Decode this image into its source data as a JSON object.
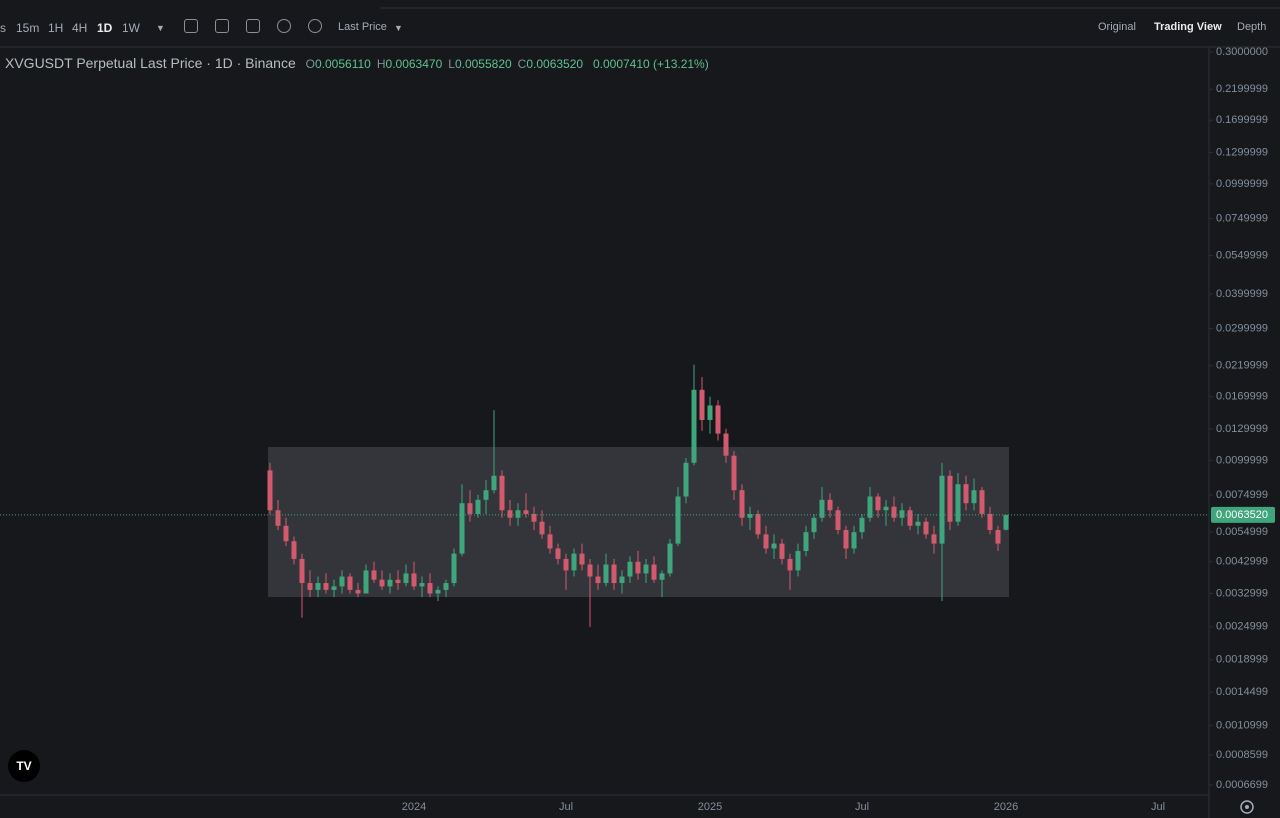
{
  "toolbar": {
    "intervals": [
      "s",
      "15m",
      "1H",
      "4H",
      "1D",
      "1W"
    ],
    "price_source": "Last Price",
    "views": [
      "Original",
      "Trading View",
      "Depth"
    ]
  },
  "header": {
    "title": "XVGUSDT Perpetual Last Price · 1D · Binance",
    "ohlc": [
      {
        "key": "O",
        "value": "0.0056110"
      },
      {
        "key": "H",
        "value": "0.0063470"
      },
      {
        "key": "L",
        "value": "0.0055820"
      },
      {
        "key": "C",
        "value": "0.0063520"
      }
    ],
    "change": "0.0007410 (+13.21%)"
  },
  "chart_data": {
    "type": "candlestick",
    "log_scale": true,
    "grid": false,
    "up_color": "#3fa57d",
    "down_color": "#d25a6e",
    "categories": [
      null,
      null,
      null,
      null,
      null,
      null,
      null,
      null,
      null,
      null,
      null,
      null,
      null,
      null,
      null,
      null,
      null,
      null,
      "2024",
      null,
      null,
      null,
      null,
      null,
      null,
      null,
      null,
      null,
      null,
      null,
      null,
      null,
      null,
      null,
      null,
      null,
      null,
      "Jul",
      null,
      null,
      null,
      null,
      null,
      null,
      null,
      null,
      null,
      null,
      null,
      null,
      null,
      null,
      null,
      null,
      null,
      "2025",
      null,
      null,
      null,
      null,
      null,
      null,
      null,
      null,
      null,
      null,
      null,
      null,
      null,
      null,
      null,
      null,
      null,
      null,
      "Jul",
      null,
      null,
      null,
      null,
      null,
      null,
      null,
      null,
      null,
      null,
      null,
      null,
      null,
      null,
      null,
      null,
      null,
      "2026",
      null,
      null,
      null,
      null,
      null,
      null,
      null,
      null,
      null,
      null,
      null,
      null,
      null,
      null,
      null,
      null,
      null,
      null,
      "Jul"
    ],
    "open": [
      0.0092,
      0.0066,
      0.0058,
      0.0051,
      0.0044,
      0.0036,
      0.0034,
      0.0036,
      0.0034,
      0.0035,
      0.0038,
      0.0034,
      0.0033,
      0.004,
      0.0037,
      0.0035,
      0.0037,
      0.0036,
      0.0039,
      0.0035,
      0.0036,
      0.0033,
      0.0034,
      0.0036,
      0.0046,
      0.007,
      0.0064,
      0.0072,
      0.0078,
      0.0088,
      0.0066,
      0.0062,
      0.0066,
      0.0064,
      0.006,
      0.0054,
      0.0048,
      0.0044,
      0.004,
      0.0046,
      0.0042,
      0.0038,
      0.0036,
      0.0042,
      0.0036,
      0.0038,
      0.0043,
      0.0039,
      0.0042,
      0.0037,
      0.0039,
      0.005,
      0.0074,
      0.0098,
      0.018,
      0.014,
      0.0158,
      0.0125,
      0.0104,
      0.0078,
      0.0062,
      0.0064,
      0.0054,
      0.0048,
      0.005,
      0.0044,
      0.004,
      0.0047,
      0.0055,
      0.0062,
      0.0072,
      0.0066,
      0.0056,
      0.0048,
      0.0055,
      0.0062,
      0.0074,
      0.0066,
      0.0068,
      0.0062,
      0.0066,
      0.0058,
      0.006,
      0.0054,
      0.005,
      0.0088,
      0.006,
      0.0082,
      0.007,
      0.0078,
      0.0064,
      0.0056,
      0.005611,
      null,
      null,
      null,
      null,
      null,
      null,
      null,
      null,
      null,
      null,
      null,
      null,
      null,
      null,
      null,
      null,
      null,
      null,
      null
    ],
    "high": [
      0.0098,
      0.0072,
      0.0062,
      0.0053,
      0.0046,
      0.004,
      0.0038,
      0.0039,
      0.0037,
      0.004,
      0.0039,
      0.0036,
      0.0042,
      0.0043,
      0.004,
      0.0039,
      0.004,
      0.0042,
      0.0043,
      0.0038,
      0.0039,
      0.0035,
      0.0037,
      0.0048,
      0.0082,
      0.0078,
      0.0075,
      0.0085,
      0.0152,
      0.0092,
      0.0072,
      0.007,
      0.0076,
      0.0068,
      0.0066,
      0.0058,
      0.005,
      0.0046,
      0.0048,
      0.005,
      0.0044,
      0.0042,
      0.0046,
      0.0044,
      0.004,
      0.0045,
      0.0047,
      0.0044,
      0.0045,
      0.004,
      0.0052,
      0.008,
      0.0102,
      0.0222,
      0.02,
      0.017,
      0.0165,
      0.013,
      0.0108,
      0.0082,
      0.0068,
      0.0066,
      0.0058,
      0.0054,
      0.0052,
      0.0046,
      0.005,
      0.0058,
      0.0064,
      0.008,
      0.0076,
      0.0068,
      0.0058,
      0.0058,
      0.0064,
      0.008,
      0.0076,
      0.0072,
      0.0074,
      0.007,
      0.0068,
      0.0064,
      0.0062,
      0.0058,
      0.0098,
      0.0092,
      0.009,
      0.0088,
      0.0086,
      0.008,
      0.0068,
      0.0058,
      0.006347,
      null,
      null,
      null,
      null,
      null,
      null,
      null,
      null,
      null,
      null,
      null,
      null,
      null,
      null,
      null,
      null,
      null,
      null,
      null
    ],
    "low": [
      0.0064,
      0.0056,
      0.0049,
      0.0042,
      0.0027,
      0.0032,
      0.0032,
      0.0033,
      0.0032,
      0.0033,
      0.0033,
      0.0032,
      0.0033,
      0.0036,
      0.0034,
      0.0033,
      0.0034,
      0.0035,
      0.0034,
      0.0032,
      0.0032,
      0.0031,
      0.0032,
      0.0035,
      0.0045,
      0.006,
      0.0062,
      0.0064,
      0.0076,
      0.0062,
      0.0058,
      0.0058,
      0.0062,
      0.0056,
      0.0052,
      0.0046,
      0.0042,
      0.0034,
      0.0038,
      0.004,
      0.0025,
      0.0034,
      0.0035,
      0.0034,
      0.0033,
      0.0036,
      0.0037,
      0.0036,
      0.0036,
      0.0032,
      0.0038,
      0.0049,
      0.007,
      0.0096,
      0.0128,
      0.0125,
      0.0118,
      0.0098,
      0.0072,
      0.0058,
      0.0056,
      0.0052,
      0.0046,
      0.0044,
      0.0042,
      0.0034,
      0.0038,
      0.0045,
      0.0052,
      0.006,
      0.0062,
      0.0054,
      0.0044,
      0.0046,
      0.0052,
      0.006,
      0.0062,
      0.0058,
      0.006,
      0.0058,
      0.0056,
      0.0054,
      0.0052,
      0.0046,
      0.0031,
      0.0056,
      0.0058,
      0.0066,
      0.0066,
      0.0062,
      0.0054,
      0.0047,
      0.005582,
      null,
      null,
      null,
      null,
      null,
      null,
      null,
      null,
      null,
      null,
      null,
      null,
      null,
      null,
      null,
      null,
      null,
      null,
      null
    ],
    "close": [
      0.0066,
      0.0058,
      0.0051,
      0.0044,
      0.0036,
      0.0034,
      0.0036,
      0.0034,
      0.0035,
      0.0038,
      0.0034,
      0.0033,
      0.004,
      0.0037,
      0.0035,
      0.0037,
      0.0036,
      0.0039,
      0.0035,
      0.0036,
      0.0033,
      0.0034,
      0.0036,
      0.0046,
      0.007,
      0.0064,
      0.0072,
      0.0078,
      0.0088,
      0.0066,
      0.0062,
      0.0066,
      0.0064,
      0.006,
      0.0054,
      0.0048,
      0.0044,
      0.004,
      0.0046,
      0.0042,
      0.0038,
      0.0036,
      0.0042,
      0.0036,
      0.0038,
      0.0043,
      0.0039,
      0.0042,
      0.0037,
      0.0039,
      0.005,
      0.0074,
      0.0098,
      0.018,
      0.014,
      0.0158,
      0.0125,
      0.0104,
      0.0078,
      0.0062,
      0.0064,
      0.0054,
      0.0048,
      0.005,
      0.0044,
      0.004,
      0.0047,
      0.0055,
      0.0062,
      0.0072,
      0.0066,
      0.0056,
      0.0048,
      0.0055,
      0.0062,
      0.0074,
      0.0066,
      0.0068,
      0.0062,
      0.0066,
      0.0058,
      0.006,
      0.0054,
      0.005,
      0.0088,
      0.006,
      0.0082,
      0.007,
      0.0078,
      0.0064,
      0.0056,
      0.005,
      0.006352,
      null,
      null,
      null,
      null,
      null,
      null,
      null,
      null,
      null,
      null,
      null,
      null,
      null,
      null,
      null,
      null,
      null,
      null,
      null
    ],
    "ylim": [
      0.000616,
      0.3128
    ],
    "yticks": [
      {
        "value": 0.3,
        "label": "0.3000000"
      },
      0.2199999,
      0.1699999,
      0.1299999,
      0.0999999,
      0.0749999,
      0.0549999,
      0.0399999,
      0.0299999,
      0.0219999,
      0.0169999,
      0.0129999,
      0.0099999,
      0.0074999,
      0.0054999,
      0.0042999,
      0.0032999,
      0.0024999,
      0.0018999,
      0.0014499,
      0.0010999,
      0.0008599,
      0.0006699
    ],
    "last_price": {
      "value": 0.006352,
      "label": "0.0063520"
    }
  }
}
